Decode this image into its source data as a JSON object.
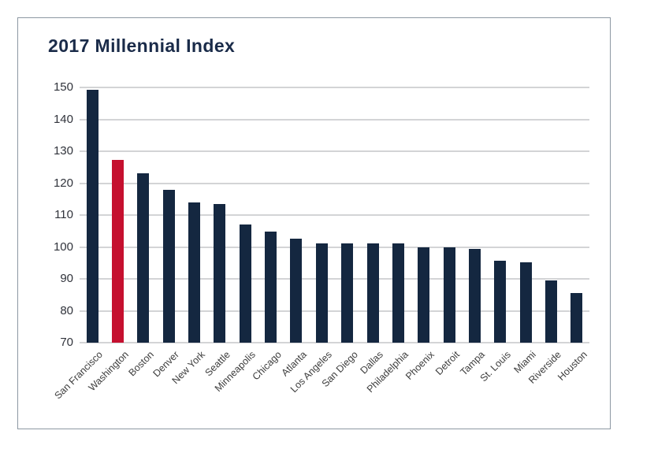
{
  "panel": {
    "title": "2017 Millennial Index"
  },
  "colors": {
    "bar": "#142740",
    "highlight_bar": "#C5102F",
    "title_text": "#1A2B49",
    "gridline": "#D3D4D6",
    "y_tick_text": "#30333B",
    "x_label_text": "#3D3D3D",
    "panel_border": "#8D98A3",
    "background": "#FFFFFF"
  },
  "chart_data": {
    "type": "bar",
    "title": "2017 Millennial Index",
    "categories": [
      "San Francisco",
      "Washington",
      "Boston",
      "Denver",
      "New York",
      "Seattle",
      "Minneapolis",
      "Chicago",
      "Atlanta",
      "Los Angeles",
      "San Diego",
      "Dallas",
      "Philadelphia",
      "Phoenix",
      "Detroit",
      "Tampa",
      "St. Louis",
      "Miami",
      "Riverside",
      "Houston"
    ],
    "values": [
      149.3,
      127.3,
      123,
      118,
      114,
      113.4,
      107,
      104.8,
      102.6,
      101.2,
      101.2,
      101.2,
      101,
      100,
      99.9,
      99.3,
      95.6,
      95.2,
      89.4,
      85.6
    ],
    "highlighted_category": "Washington",
    "bar_color": "#142740",
    "highlight_color": "#C5102F",
    "ylim": [
      70,
      150
    ],
    "y_ticks": [
      70,
      80,
      90,
      100,
      110,
      120,
      130,
      140,
      150
    ],
    "grid": true,
    "legend": "none",
    "xlabel": "",
    "ylabel": ""
  }
}
